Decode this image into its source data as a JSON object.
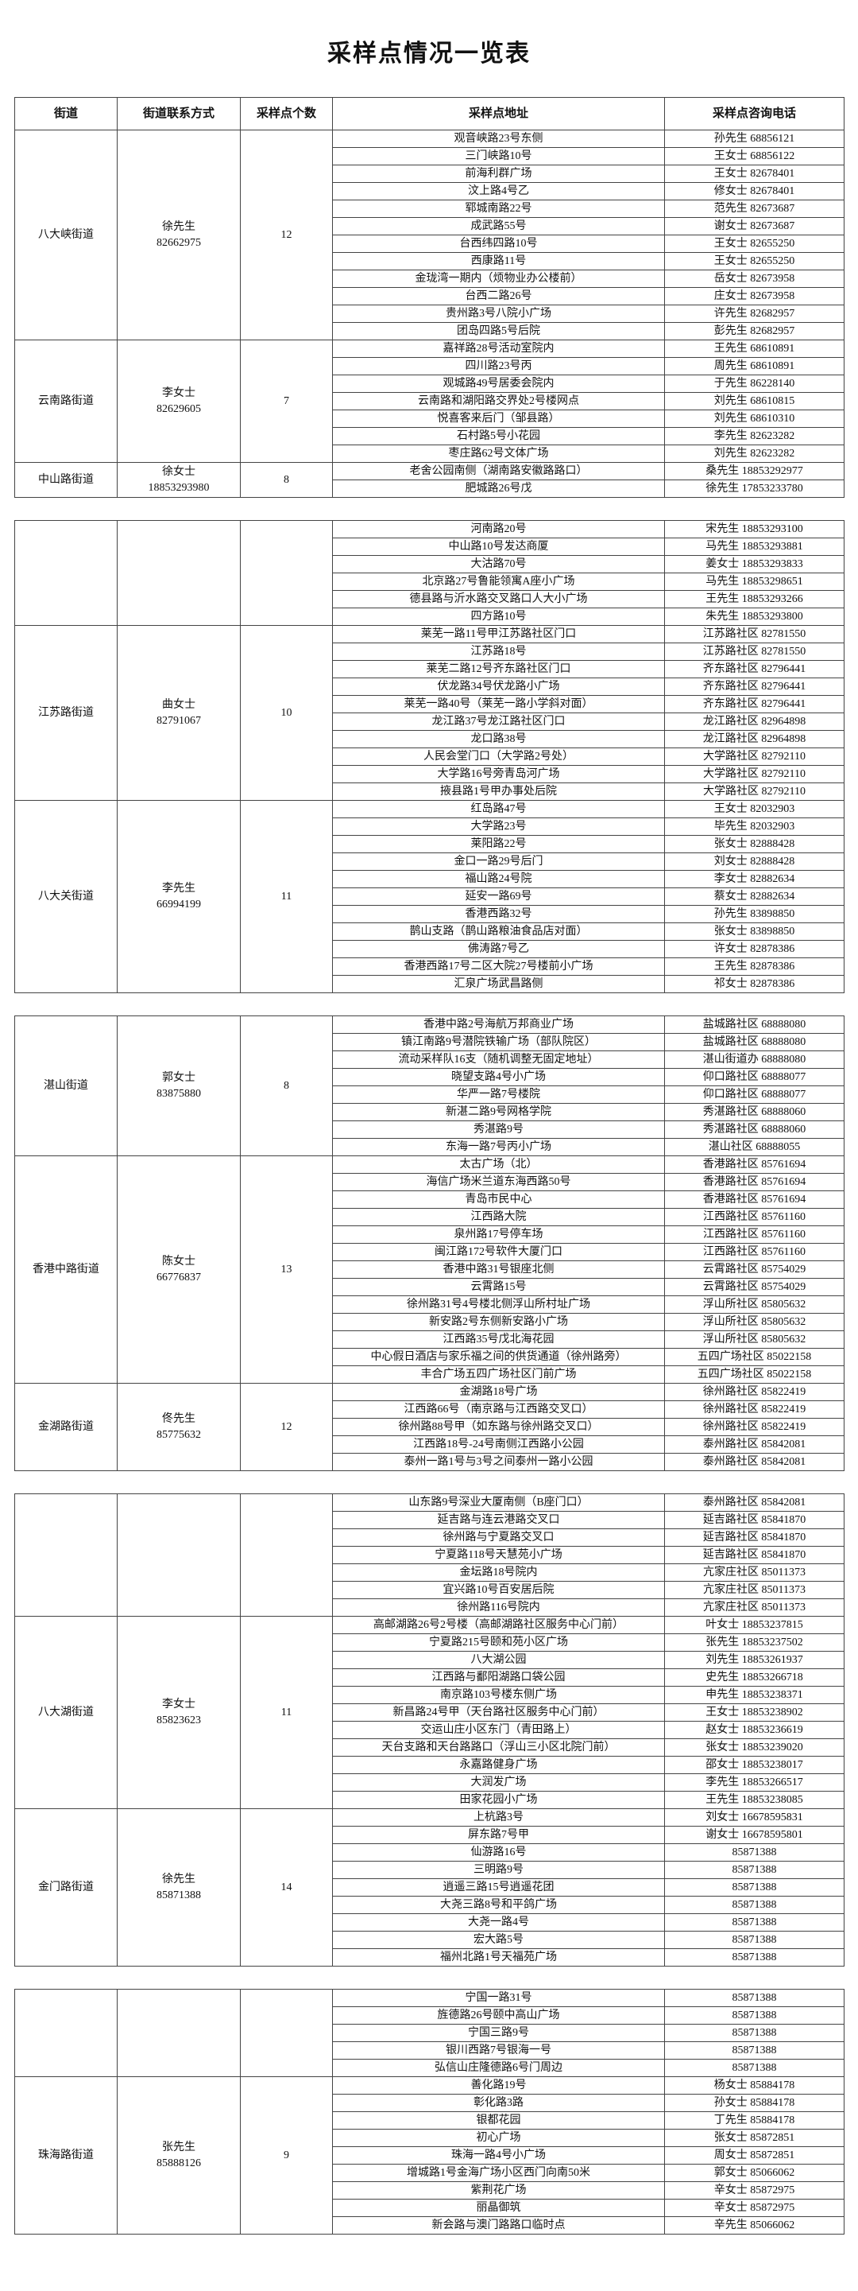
{
  "title": "采样点情况一览表",
  "table": {
    "header": [
      "街道",
      "街道联系方式",
      "采样点个数",
      "采样点地址",
      "采样点咨询电话"
    ],
    "groups": [
      {
        "street": "八大峡街道",
        "contact": [
          "徐先生",
          "82662975"
        ],
        "count": 12,
        "sites": [
          [
            "观音峡路23号东侧",
            "孙先生 68856121"
          ],
          [
            "三门峡路10号",
            "王女士 68856122"
          ],
          [
            "前海利群广场",
            "王女士 82678401"
          ],
          [
            "汶上路4号乙",
            "修女士 82678401"
          ],
          [
            "郓城南路22号",
            "范先生 82673687"
          ],
          [
            "成武路55号",
            "谢女士 82673687"
          ],
          [
            "台西纬四路10号",
            "王女士 82655250"
          ],
          [
            "西康路11号",
            "王女士 82655250"
          ],
          [
            "金珑湾一期内（烦物业办公楼前）",
            "岳女士 82673958"
          ],
          [
            "台西二路26号",
            "庄女士 82673958"
          ],
          [
            "贵州路3号八院小广场",
            "许先生 82682957"
          ],
          [
            "团岛四路5号后院",
            "彭先生 82682957"
          ]
        ]
      },
      {
        "street": "云南路街道",
        "contact": [
          "李女士",
          "82629605"
        ],
        "count": 7,
        "sites": [
          [
            "嘉祥路28号活动室院内",
            "王先生 68610891"
          ],
          [
            "四川路23号丙",
            "周先生 68610891"
          ],
          [
            "观城路49号居委会院内",
            "于先生 86228140"
          ],
          [
            "云南路和湖阳路交界处2号楼网点",
            "刘先生 68610815"
          ],
          [
            "悦喜客来后门（邹县路）",
            "刘先生 68610310"
          ],
          [
            "石村路5号小花园",
            "李先生 82623282"
          ],
          [
            "枣庄路62号文体广场",
            "刘先生 82623282"
          ]
        ]
      },
      {
        "street": "中山路街道",
        "contact": [
          "徐女士",
          "18853293980"
        ],
        "count": 8,
        "sites": [
          [
            "老舍公园南侧（湖南路安徽路路口）",
            "桑先生 18853292977"
          ],
          [
            "肥城路26号戊",
            "徐先生 17853233780"
          ],
          [
            "河南路20号",
            "宋先生 18853293100"
          ],
          [
            "中山路10号发达商厦",
            "马先生 18853293881"
          ],
          [
            "大沽路70号",
            "姜女士 18853293833"
          ],
          [
            "北京路27号鲁能领寓A座小广场",
            "马先生 18853298651"
          ],
          [
            "德县路与沂水路交叉路口人大小广场",
            "王先生 18853293266"
          ],
          [
            "四方路10号",
            "朱先生 18853293800"
          ]
        ]
      },
      {
        "street": "江苏路街道",
        "contact": [
          "曲女士",
          "82791067"
        ],
        "count": 10,
        "sites": [
          [
            "莱芜一路11号甲江苏路社区门口",
            "江苏路社区 82781550"
          ],
          [
            "江苏路18号",
            "江苏路社区 82781550"
          ],
          [
            "莱芜二路12号齐东路社区门口",
            "齐东路社区 82796441"
          ],
          [
            "伏龙路34号伏龙路小广场",
            "齐东路社区 82796441"
          ],
          [
            "莱芜一路40号（莱芜一路小学斜对面）",
            "齐东路社区 82796441"
          ],
          [
            "龙江路37号龙江路社区门口",
            "龙江路社区 82964898"
          ],
          [
            "龙口路38号",
            "龙江路社区 82964898"
          ],
          [
            "人民会堂门口（大学路2号处）",
            "大学路社区 82792110"
          ],
          [
            "大学路16号旁青岛河广场",
            "大学路社区 82792110"
          ],
          [
            "掖县路1号甲办事处后院",
            "大学路社区 82792110"
          ]
        ]
      },
      {
        "street": "八大关街道",
        "contact": [
          "李先生",
          "66994199"
        ],
        "count": 11,
        "sites": [
          [
            "红岛路47号",
            "王女士 82032903"
          ],
          [
            "大学路23号",
            "毕先生 82032903"
          ],
          [
            "莱阳路22号",
            "张女士 82888428"
          ],
          [
            "金口一路29号后门",
            "刘女士 82888428"
          ],
          [
            "福山路24号院",
            "李女士 82882634"
          ],
          [
            "延安一路69号",
            "蔡女士 82882634"
          ],
          [
            "香港西路32号",
            "孙先生 83898850"
          ],
          [
            "鹊山支路（鹊山路粮油食品店对面）",
            "张女士 83898850"
          ],
          [
            "佛涛路7号乙",
            "许女士 82878386"
          ],
          [
            "香港西路17号二区大院27号楼前小广场",
            "王先生 82878386"
          ],
          [
            "汇泉广场武昌路侧",
            "祁女士 82878386"
          ]
        ]
      },
      {
        "street": "湛山街道",
        "contact": [
          "郭女士",
          "83875880"
        ],
        "count": 8,
        "sites": [
          [
            "香港中路2号海航万邦商业广场",
            "盐城路社区 68888080"
          ],
          [
            "镇江南路9号潜院铁输广场（部队院区）",
            "盐城路社区 68888080"
          ],
          [
            "流动采样队16支（随机调整无固定地址）",
            "湛山街道办 68888080"
          ],
          [
            "晓望支路4号小广场",
            "仰口路社区 68888077"
          ],
          [
            "华严一路7号楼院",
            "仰口路社区 68888077"
          ],
          [
            "新湛二路9号网格学院",
            "秀湛路社区 68888060"
          ],
          [
            "秀湛路9号",
            "秀湛路社区 68888060"
          ],
          [
            "东海一路7号丙小广场",
            "湛山社区 68888055"
          ]
        ]
      },
      {
        "street": "香港中路街道",
        "contact": [
          "陈女士",
          "66776837"
        ],
        "count": 13,
        "sites": [
          [
            "太古广场（北）",
            "香港路社区 85761694"
          ],
          [
            "海信广场米兰道东海西路50号",
            "香港路社区 85761694"
          ],
          [
            "青岛市民中心",
            "香港路社区 85761694"
          ],
          [
            "江西路大院",
            "江西路社区 85761160"
          ],
          [
            "泉州路17号停车场",
            "江西路社区 85761160"
          ],
          [
            "闽江路172号软件大厦门口",
            "江西路社区 85761160"
          ],
          [
            "香港中路31号银座北侧",
            "云霄路社区 85754029"
          ],
          [
            "云霄路15号",
            "云霄路社区 85754029"
          ],
          [
            "徐州路31号4号楼北侧浮山所村址广场",
            "浮山所社区 85805632"
          ],
          [
            "新安路2号东侧新安路小广场",
            "浮山所社区 85805632"
          ],
          [
            "江西路35号戊北海花园",
            "浮山所社区 85805632"
          ],
          [
            "中心假日酒店与家乐福之间的供货通道（徐州路旁）",
            "五四广场社区 85022158"
          ],
          [
            "丰合广场五四广场社区门前广场",
            "五四广场社区 85022158"
          ]
        ]
      },
      {
        "street": "金湖路街道",
        "contact": [
          "佟先生",
          "85775632"
        ],
        "count": 12,
        "sites": [
          [
            "金湖路18号广场",
            "徐州路社区 85822419"
          ],
          [
            "江西路66号（南京路与江西路交叉口）",
            "徐州路社区 85822419"
          ],
          [
            "徐州路88号甲（如东路与徐州路交叉口）",
            "徐州路社区 85822419"
          ],
          [
            "江西路18号-24号南侧江西路小公园",
            "泰州路社区 85842081"
          ],
          [
            "泰州一路1号与3号之间泰州一路小公园",
            "泰州路社区 85842081"
          ],
          [
            "山东路9号深业大厦南侧（B座门口）",
            "泰州路社区 85842081"
          ],
          [
            "延吉路与连云港路交叉口",
            "延吉路社区 85841870"
          ],
          [
            "徐州路与宁夏路交叉口",
            "延吉路社区 85841870"
          ],
          [
            "宁夏路118号天慧苑小广场",
            "延吉路社区 85841870"
          ],
          [
            "金坛路18号院内",
            "亢家庄社区 85011373"
          ],
          [
            "宜兴路10号百安居后院",
            "亢家庄社区 85011373"
          ],
          [
            "徐州路116号院内",
            "亢家庄社区 85011373"
          ]
        ]
      },
      {
        "street": "八大湖街道",
        "contact": [
          "李女士",
          "85823623"
        ],
        "count": 11,
        "sites": [
          [
            "高邮湖路26号2号楼（高邮湖路社区服务中心门前）",
            "叶女士 18853237815"
          ],
          [
            "宁夏路215号颐和苑小区广场",
            "张先生 18853237502"
          ],
          [
            "八大湖公园",
            "刘先生 18853261937"
          ],
          [
            "江西路与鄱阳湖路口袋公园",
            "史先生 18853266718"
          ],
          [
            "南京路103号楼东侧广场",
            "申先生 18853238371"
          ],
          [
            "新昌路24号甲（天台路社区服务中心门前）",
            "王女士 18853238902"
          ],
          [
            "交运山庄小区东门（青田路上）",
            "赵女士 18853236619"
          ],
          [
            "天台支路和天台路路口（浮山三小区北院门前）",
            "张女士 18853239020"
          ],
          [
            "永嘉路健身广场",
            "邵女士 18853238017"
          ],
          [
            "大润发广场",
            "李先生 18853266517"
          ],
          [
            "田家花园小广场",
            "王先生 18853238085"
          ]
        ]
      },
      {
        "street": "金门路街道",
        "contact": [
          "徐先生",
          "85871388"
        ],
        "count": 14,
        "sites": [
          [
            "上杭路3号",
            "刘女士 16678595831"
          ],
          [
            "屏东路7号甲",
            "谢女士 16678595801"
          ],
          [
            "仙游路16号",
            "85871388"
          ],
          [
            "三明路9号",
            "85871388"
          ],
          [
            "逍遥三路15号逍遥花团",
            "85871388"
          ],
          [
            "大尧三路8号和平鸽广场",
            "85871388"
          ],
          [
            "大尧一路4号",
            "85871388"
          ],
          [
            "宏大路5号",
            "85871388"
          ],
          [
            "福州北路1号天福苑广场",
            "85871388"
          ],
          [
            "宁国一路31号",
            "85871388"
          ],
          [
            "旌德路26号颐中高山广场",
            "85871388"
          ],
          [
            "宁国三路9号",
            "85871388"
          ],
          [
            "银川西路7号银海一号",
            "85871388"
          ],
          [
            "弘信山庄隆德路6号门周边",
            "85871388"
          ]
        ]
      },
      {
        "street": "珠海路街道",
        "contact": [
          "张先生",
          "85888126"
        ],
        "count": 9,
        "sites": [
          [
            "善化路19号",
            "杨女士 85884178"
          ],
          [
            "彰化路3路",
            "孙女士 85884178"
          ],
          [
            "银都花园",
            "丁先生 85884178"
          ],
          [
            "初心广场",
            "张女士 85872851"
          ],
          [
            "珠海一路4号小广场",
            "周女士 85872851"
          ],
          [
            "增城路1号金海广场小区西门向南50米",
            "郭女士 85066062"
          ],
          [
            "紫荆花广场",
            "辛女士 85872975"
          ],
          [
            "丽晶御筑",
            "辛女士 85872975"
          ],
          [
            "新会路与澳门路路口临时点",
            "辛先生 85066062"
          ]
        ]
      }
    ]
  }
}
